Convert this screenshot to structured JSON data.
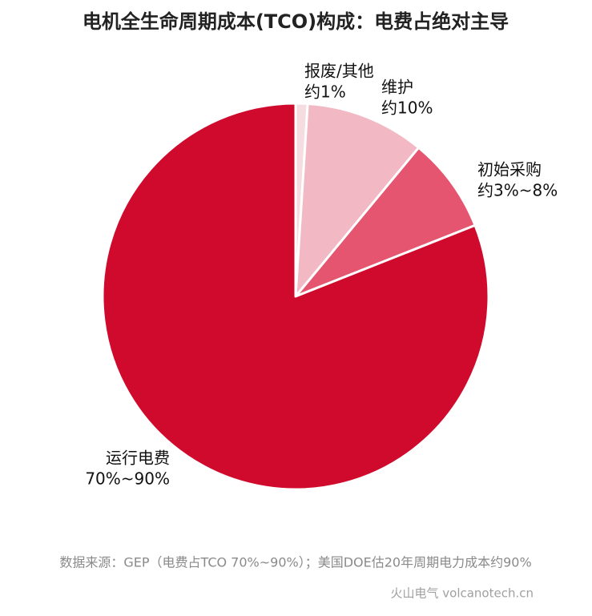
{
  "chart_data": {
    "type": "pie",
    "title": "电机全生命周期成本(TCO)构成：电费占绝对主导",
    "categories": [
      "报废/其他",
      "维护",
      "初始采购",
      "运行电费"
    ],
    "values": [
      1,
      10,
      8,
      81
    ],
    "value_labels": [
      "约1%",
      "约10%",
      "约3%~8%",
      "70%~90%"
    ],
    "colors": [
      "#f5dce1",
      "#f2b8c4",
      "#e5556f",
      "#cf0a2c"
    ],
    "source": "数据来源：GEP（电费占TCO 70%~90%）；美国DOE估20年周期电力成本约90%",
    "credit": "火山电气 volcanotech.cn"
  }
}
